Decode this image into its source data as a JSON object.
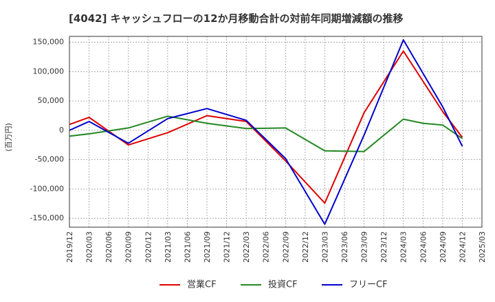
{
  "chart_data": {
    "type": "line",
    "title": "[4042]  キャッシュフローの12か月移動合計の対前年同期増減額の推移",
    "ylabel": "(百万円)",
    "xlabel": "",
    "ylim": [
      -165000,
      160000
    ],
    "yticks": [
      150000,
      100000,
      50000,
      0,
      -50000,
      -100000,
      -150000
    ],
    "ytick_labels": [
      "150,000",
      "100,000",
      "50,000",
      "0",
      "-50,000",
      "-100,000",
      "-150,000"
    ],
    "x_categories": [
      "2019/12",
      "2020/03",
      "2020/06",
      "2020/09",
      "2020/12",
      "2021/03",
      "2021/06",
      "2021/09",
      "2021/12",
      "2022/03",
      "2022/06",
      "2022/09",
      "2022/12",
      "2023/03",
      "2023/06",
      "2023/09",
      "2023/12",
      "2024/03",
      "2024/06",
      "2024/09",
      "2024/12",
      "2025/03"
    ],
    "grid": true,
    "legend_position": "bottom",
    "series": [
      {
        "name": "営業CF",
        "color": "#dd0000",
        "points": [
          [
            "2019/12",
            10000
          ],
          [
            "2020/03",
            22000
          ],
          [
            "2020/09",
            -25000
          ],
          [
            "2021/03",
            -4000
          ],
          [
            "2021/09",
            25000
          ],
          [
            "2022/03",
            15000
          ],
          [
            "2022/09",
            -52000
          ],
          [
            "2023/03",
            -124000
          ],
          [
            "2023/09",
            30000
          ],
          [
            "2024/03",
            135000
          ],
          [
            "2024/09",
            32000
          ],
          [
            "2024/12",
            -12000
          ]
        ]
      },
      {
        "name": "投資CF",
        "color": "#228822",
        "points": [
          [
            "2019/12",
            -10000
          ],
          [
            "2020/03",
            -6000
          ],
          [
            "2020/09",
            4000
          ],
          [
            "2021/03",
            24000
          ],
          [
            "2021/09",
            12000
          ],
          [
            "2022/03",
            3000
          ],
          [
            "2022/09",
            4000
          ],
          [
            "2023/03",
            -35000
          ],
          [
            "2023/09",
            -36000
          ],
          [
            "2024/03",
            19000
          ],
          [
            "2024/06",
            12000
          ],
          [
            "2024/09",
            9000
          ],
          [
            "2024/12",
            -14000
          ]
        ]
      },
      {
        "name": "フリーCF",
        "color": "#0000cc",
        "points": [
          [
            "2019/12",
            0
          ],
          [
            "2020/03",
            15000
          ],
          [
            "2020/09",
            -22000
          ],
          [
            "2021/03",
            20000
          ],
          [
            "2021/09",
            37000
          ],
          [
            "2022/03",
            17000
          ],
          [
            "2022/09",
            -48000
          ],
          [
            "2023/03",
            -160000
          ],
          [
            "2023/09",
            -8000
          ],
          [
            "2024/03",
            154000
          ],
          [
            "2024/09",
            40000
          ],
          [
            "2024/12",
            -27000
          ]
        ]
      }
    ]
  }
}
